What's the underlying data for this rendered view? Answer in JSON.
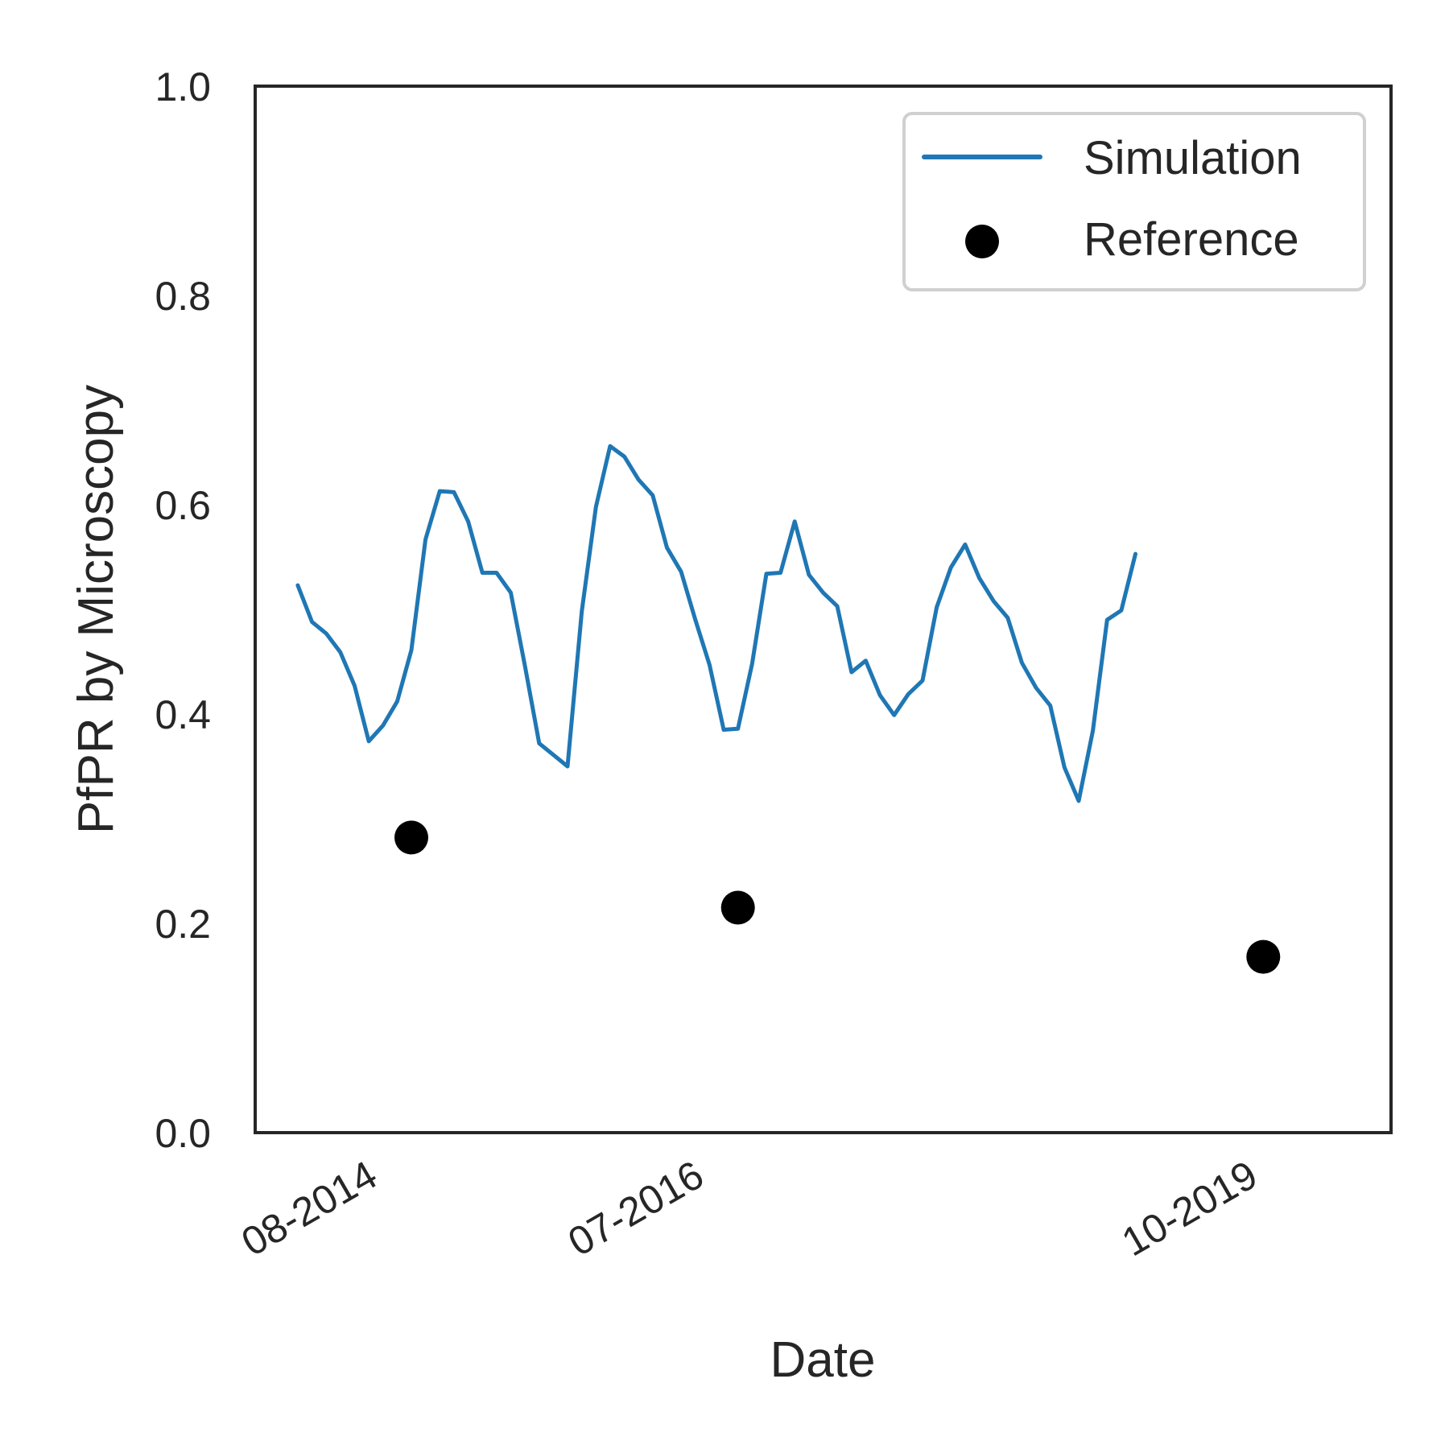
{
  "chart_data": {
    "type": "line",
    "title": "",
    "xlabel": "Date",
    "ylabel": "PfPR by Microscopy",
    "ylim": [
      0.0,
      1.0
    ],
    "yticks": [
      "0.0",
      "0.2",
      "0.4",
      "0.6",
      "0.8",
      "1.0"
    ],
    "xticks": [
      {
        "label": "08-2014",
        "date": "2014-08"
      },
      {
        "label": "07-2016",
        "date": "2016-07"
      },
      {
        "label": "10-2019",
        "date": "2019-10"
      }
    ],
    "xlim": [
      "2013-12",
      "2020-08"
    ],
    "grid": false,
    "legend_position": "top-right",
    "series": [
      {
        "name": "Simulation",
        "kind": "line",
        "color": "#1f77b4",
        "points": [
          {
            "x": "2014-03",
            "y": 0.523
          },
          {
            "x": "2014-04",
            "y": 0.488
          },
          {
            "x": "2014-05",
            "y": 0.477
          },
          {
            "x": "2014-06",
            "y": 0.459
          },
          {
            "x": "2014-07",
            "y": 0.427
          },
          {
            "x": "2014-08",
            "y": 0.374
          },
          {
            "x": "2014-09",
            "y": 0.389
          },
          {
            "x": "2014-10",
            "y": 0.412
          },
          {
            "x": "2014-11",
            "y": 0.461
          },
          {
            "x": "2014-12",
            "y": 0.567
          },
          {
            "x": "2015-01",
            "y": 0.613
          },
          {
            "x": "2015-02",
            "y": 0.612
          },
          {
            "x": "2015-03",
            "y": 0.584
          },
          {
            "x": "2015-04",
            "y": 0.535
          },
          {
            "x": "2015-05",
            "y": 0.535
          },
          {
            "x": "2015-06",
            "y": 0.516
          },
          {
            "x": "2015-07",
            "y": 0.446
          },
          {
            "x": "2015-08",
            "y": 0.372
          },
          {
            "x": "2015-09",
            "y": 0.361
          },
          {
            "x": "2015-10",
            "y": 0.35
          },
          {
            "x": "2015-11",
            "y": 0.498
          },
          {
            "x": "2015-12",
            "y": 0.598
          },
          {
            "x": "2016-01",
            "y": 0.656
          },
          {
            "x": "2016-02",
            "y": 0.646
          },
          {
            "x": "2016-03",
            "y": 0.624
          },
          {
            "x": "2016-04",
            "y": 0.609
          },
          {
            "x": "2016-05",
            "y": 0.559
          },
          {
            "x": "2016-06",
            "y": 0.536
          },
          {
            "x": "2016-07",
            "y": 0.49
          },
          {
            "x": "2016-08",
            "y": 0.447
          },
          {
            "x": "2016-09",
            "y": 0.385
          },
          {
            "x": "2016-10",
            "y": 0.386
          },
          {
            "x": "2016-11",
            "y": 0.448
          },
          {
            "x": "2016-12",
            "y": 0.534
          },
          {
            "x": "2017-01",
            "y": 0.535
          },
          {
            "x": "2017-02",
            "y": 0.584
          },
          {
            "x": "2017-03",
            "y": 0.533
          },
          {
            "x": "2017-04",
            "y": 0.516
          },
          {
            "x": "2017-05",
            "y": 0.503
          },
          {
            "x": "2017-06",
            "y": 0.44
          },
          {
            "x": "2017-07",
            "y": 0.451
          },
          {
            "x": "2017-08",
            "y": 0.418
          },
          {
            "x": "2017-09",
            "y": 0.399
          },
          {
            "x": "2017-10",
            "y": 0.419
          },
          {
            "x": "2017-11",
            "y": 0.432
          },
          {
            "x": "2017-12",
            "y": 0.502
          },
          {
            "x": "2018-01",
            "y": 0.54
          },
          {
            "x": "2018-02",
            "y": 0.562
          },
          {
            "x": "2018-03",
            "y": 0.53
          },
          {
            "x": "2018-04",
            "y": 0.508
          },
          {
            "x": "2018-05",
            "y": 0.492
          },
          {
            "x": "2018-06",
            "y": 0.449
          },
          {
            "x": "2018-07",
            "y": 0.425
          },
          {
            "x": "2018-08",
            "y": 0.408
          },
          {
            "x": "2018-09",
            "y": 0.349
          },
          {
            "x": "2018-10",
            "y": 0.317
          },
          {
            "x": "2018-11",
            "y": 0.384
          },
          {
            "x": "2018-12",
            "y": 0.49
          },
          {
            "x": "2019-01",
            "y": 0.499
          },
          {
            "x": "2019-02",
            "y": 0.553
          }
        ]
      },
      {
        "name": "Reference",
        "kind": "scatter",
        "color": "#000000",
        "points": [
          {
            "x": "2014-11",
            "y": 0.282
          },
          {
            "x": "2016-10",
            "y": 0.215
          },
          {
            "x": "2019-11",
            "y": 0.168
          }
        ]
      }
    ]
  }
}
